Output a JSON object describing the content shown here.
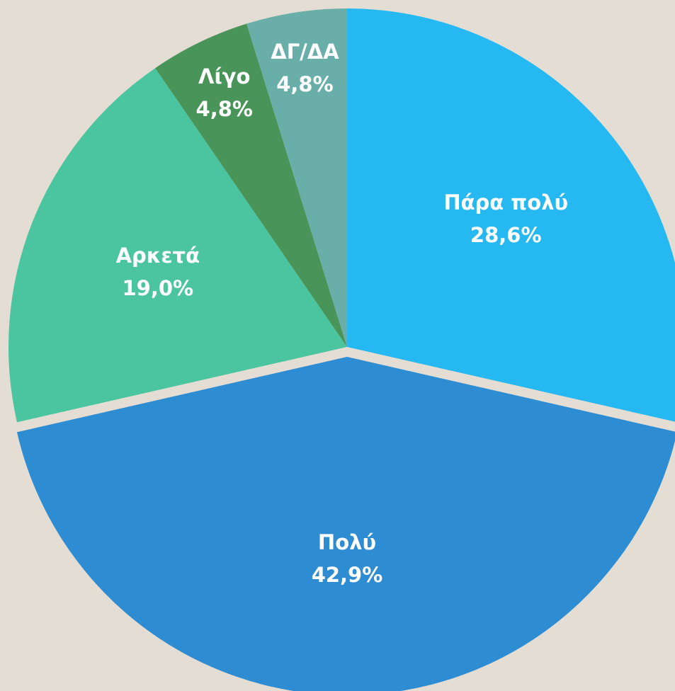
{
  "chart_data": {
    "type": "pie",
    "categories": [
      "Πάρα πολύ",
      "Πολύ",
      "Αρκετά",
      "Λίγο",
      "ΔΓ/ΔΑ"
    ],
    "values": [
      28.6,
      42.9,
      19.0,
      4.8,
      4.8
    ],
    "value_labels": [
      "28,6%",
      "42,9%",
      "19,0%",
      "4,8%",
      "4,8%"
    ],
    "colors": [
      "#25b8f1",
      "#2e8cd3",
      "#4bc5a0",
      "#489459",
      "#6aaea9"
    ],
    "exploded": [
      "Πολύ"
    ]
  }
}
